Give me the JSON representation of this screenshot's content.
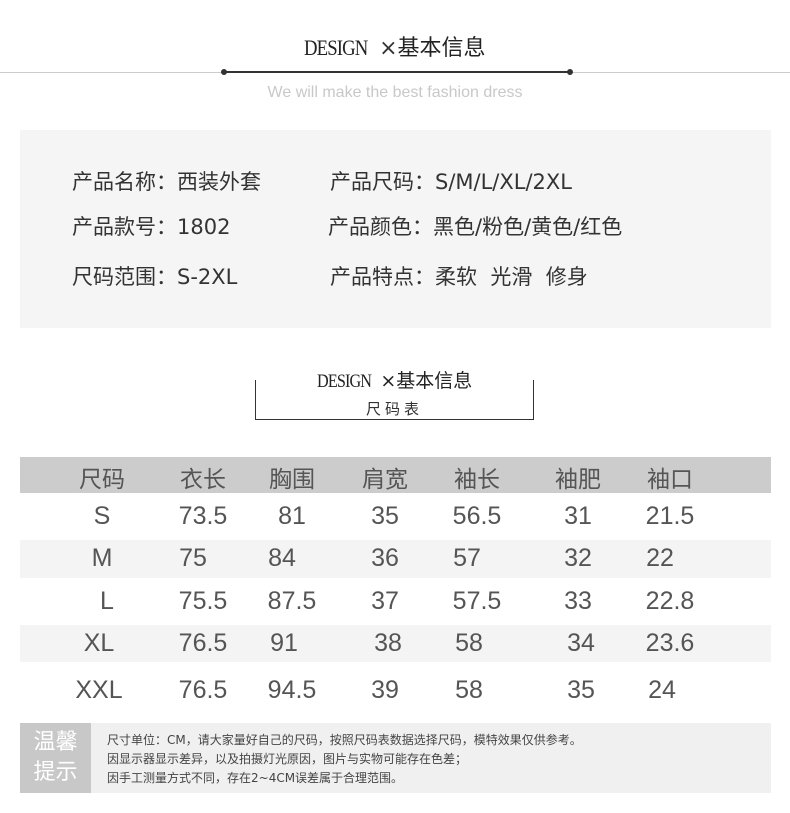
{
  "header": {
    "design": "DESIGN",
    "cross": "×",
    "title": "基本信息",
    "subtitle": "We will make the best fashion dress"
  },
  "info": [
    {
      "label": "产品名称：",
      "value": "西装外套"
    },
    {
      "label": "产品尺码：",
      "value": "S/M/L/XL/2XL"
    },
    {
      "label": "产品款号：",
      "value": "1802"
    },
    {
      "label": "产品颜色：",
      "value": "黑色/粉色/黄色/红色"
    },
    {
      "label": "尺码范围：",
      "value": "S-2XL"
    },
    {
      "label": "产品特点：",
      "value": "柔软  光滑  修身"
    }
  ],
  "size_section": {
    "design": "DESIGN",
    "cross": "×",
    "title": "基本信息",
    "subtitle": "尺码表"
  },
  "table": {
    "headers": [
      "尺码",
      "衣长",
      "胸围",
      "肩宽",
      "袖长",
      "袖肥",
      "袖口"
    ],
    "rows": [
      [
        "S",
        "73.5",
        "81",
        "35",
        "56.5",
        "31",
        "21.5"
      ],
      [
        "M",
        "75",
        "84",
        "36",
        "57",
        "32",
        "22"
      ],
      [
        "L",
        "75.5",
        "87.5",
        "37",
        "57.5",
        "33",
        "22.8"
      ],
      [
        "XL",
        "76.5",
        "91",
        "38",
        "58",
        "34",
        "23.6"
      ],
      [
        "XXL",
        "76.5",
        "94.5",
        "39",
        "58",
        "35",
        "24"
      ]
    ]
  },
  "tips": {
    "label_line1": "温馨",
    "label_line2": "提示",
    "lines": [
      "尺寸单位：CM，请大家量好自己的尺码，按照尺码表数据选择尺码，模特效果仅供参考。",
      "因显示器显示差异，以及拍摄灯光原因，图片与实物可能存在色差；",
      "因手工测量方式不同，存在2~4CM误差属于合理范围。"
    ]
  },
  "colors": {
    "header_row": "#cccccc",
    "stripe": "#f4f4f4",
    "info_bg": "#f5f5f5",
    "tip_label": "#c8c8c8"
  }
}
